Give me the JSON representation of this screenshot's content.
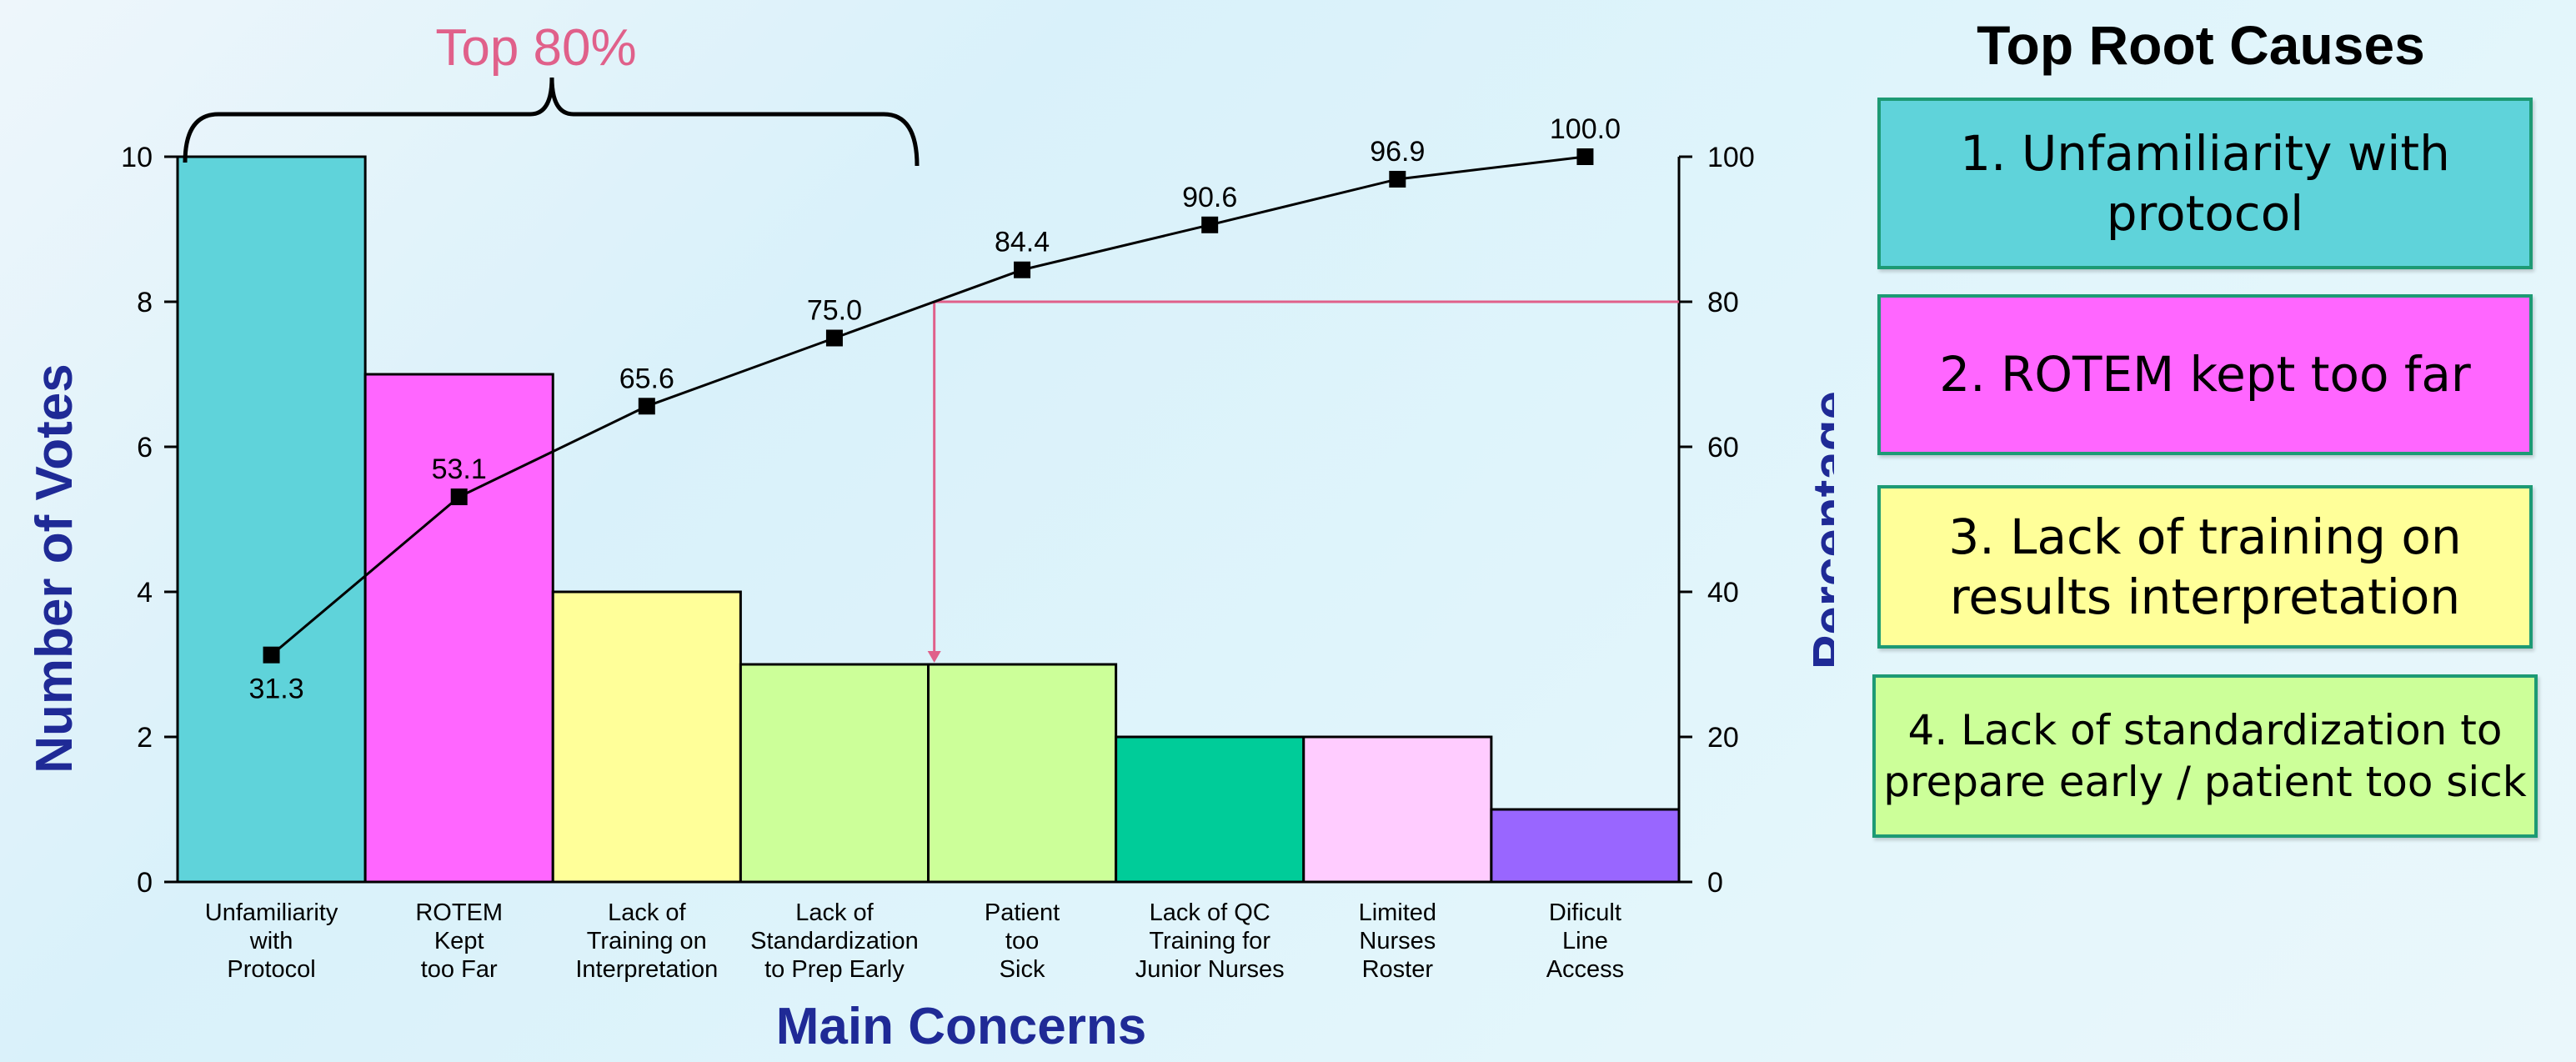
{
  "chart_data": {
    "type": "bar",
    "categories": [
      "Unfamiliarity\nwith\nProtocol",
      "ROTEM\nKept\ntoo Far",
      "Lack of\nTraining on\nInterpretation",
      "Lack of\nStandardization\nto Prep Early",
      "Patient\ntoo\nSick",
      "Lack of QC\nTraining for\nJunior Nurses",
      "Limited\nNurses\nRoster",
      "Dificult\nLine\nAccess"
    ],
    "values": [
      10,
      7,
      4,
      3,
      3,
      2,
      2,
      1
    ],
    "bar_colors": [
      "#5fd3da",
      "#ff66ff",
      "#ffff99",
      "#ccff99",
      "#ccff99",
      "#00cc99",
      "#ffccff",
      "#9966ff"
    ],
    "cumulative_percent": [
      31.3,
      53.1,
      65.6,
      75.0,
      84.4,
      90.6,
      96.9,
      100.0
    ],
    "cumulative_labels": [
      "31.3",
      "53.1",
      "65.6",
      "75.0",
      "84.4",
      "90.6",
      "96.9",
      "100.0"
    ],
    "xlabel": "Main Concerns",
    "ylabel": "Number of Votes",
    "y2label": "Percentage",
    "ylim": [
      0,
      10
    ],
    "yticks": [
      0,
      2,
      4,
      6,
      8,
      10
    ],
    "y2lim": [
      0,
      100
    ],
    "y2ticks": [
      0,
      20,
      40,
      60,
      80,
      100
    ],
    "annotation": "Top 80%",
    "threshold_percent": 80,
    "annotation_color": "#e0608a",
    "line_color": "#000000",
    "grid": false
  },
  "root_causes": {
    "title": "Top Root Causes",
    "items": [
      {
        "text": "1. Unfamiliarity with protocol",
        "color": "#5fd3da"
      },
      {
        "text": "2. ROTEM kept too far",
        "color": "#ff66ff"
      },
      {
        "text": "3. Lack of training on results interpretation",
        "color": "#ffff99"
      },
      {
        "text": "4. Lack of standardization to prepare early / patient too sick",
        "color": "#ccff99"
      }
    ]
  }
}
